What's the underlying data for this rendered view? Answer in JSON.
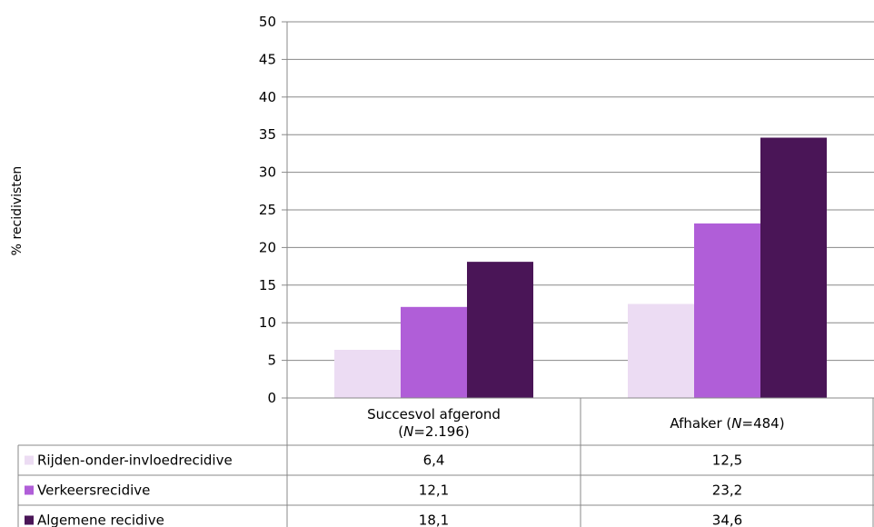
{
  "chart_data": {
    "type": "bar",
    "ylabel": "% recidivisten",
    "ylim": [
      0,
      50
    ],
    "yticks": [
      "0",
      "5",
      "10",
      "15",
      "20",
      "25",
      "30",
      "35",
      "40",
      "45",
      "50"
    ],
    "grid": true,
    "legend": "data-table-left",
    "categories": [
      {
        "line1": "Succesvol afgerond",
        "line2_prefix": "(",
        "line2_italic": "N",
        "line2_suffix": "=2.196)"
      },
      {
        "line1_prefix": "Afhaker (",
        "line1_italic": "N",
        "line1_suffix": "=484)"
      }
    ],
    "series": [
      {
        "name": "Rijden-onder-invloedrecidive",
        "color": "#ecdcf3",
        "values": [
          6.4,
          12.5
        ],
        "labels": [
          "6,4",
          "12,5"
        ]
      },
      {
        "name": "Verkeersrecidive",
        "color": "#b05ed8",
        "values": [
          12.1,
          23.2
        ],
        "labels": [
          "12,1",
          "23,2"
        ]
      },
      {
        "name": "Algemene recidive",
        "color": "#4a1557",
        "values": [
          18.1,
          34.6
        ],
        "labels": [
          "18,1",
          "34,6"
        ]
      }
    ]
  }
}
